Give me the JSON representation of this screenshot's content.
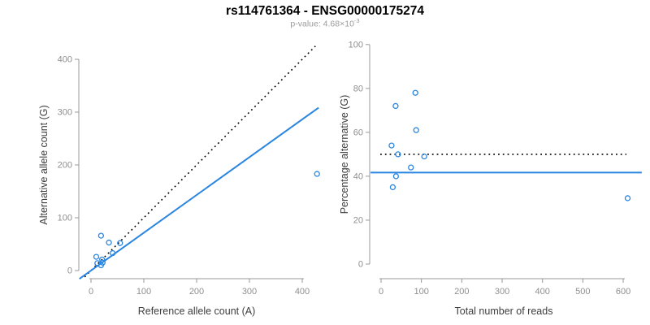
{
  "header": {
    "title": "rs114761364 - ENSG00000175274",
    "pvalue_prefix": "p-value: ",
    "pvalue_mantissa": "4.68×10",
    "pvalue_exponent": "-3"
  },
  "colors": {
    "point_blue": "#2a86e0",
    "fit_line_blue": "#2a86e0",
    "reference_line_black": "#000000",
    "axis_line": "#999999",
    "tick_label": "#8f8f8f",
    "axis_title": "#3d3d3d",
    "title": "#000000",
    "subtitle": "#9b9b9b",
    "background": "#ffffff"
  },
  "chart_data": [
    {
      "type": "scatter",
      "title": "rs114761364 - ENSG00000175274",
      "xlabel": "Reference allele count (A)",
      "ylabel": "Alternative allele count (G)",
      "xticks": [
        0,
        100,
        200,
        300,
        400
      ],
      "yticks": [
        0,
        100,
        200,
        300,
        400
      ],
      "xlim": [
        0,
        430
      ],
      "ylim": [
        0,
        430
      ],
      "grid": false,
      "points": [
        [
          10,
          26
        ],
        [
          19,
          66
        ],
        [
          34,
          53
        ],
        [
          12,
          14
        ],
        [
          21,
          21
        ],
        [
          55,
          52
        ],
        [
          41,
          33
        ],
        [
          22,
          15
        ],
        [
          19,
          10
        ],
        [
          428,
          183
        ]
      ],
      "lines": [
        {
          "name": "identity-line",
          "style": "dotted",
          "slope": 1,
          "intercept": 0,
          "xr": [
            -12,
            425
          ]
        },
        {
          "name": "fit-line",
          "style": "solid",
          "slope": 0.7156,
          "intercept": 0,
          "xr": [
            -22,
            431
          ]
        }
      ]
    },
    {
      "type": "scatter",
      "title": "rs114761364 - ENSG00000175274",
      "xlabel": "Total number of reads",
      "ylabel": "Percentage alternative (G)",
      "xticks": [
        0,
        100,
        200,
        300,
        400,
        500,
        600
      ],
      "yticks": [
        0,
        20,
        40,
        60,
        80,
        100
      ],
      "xlim": [
        0,
        620
      ],
      "ylim": [
        0,
        100
      ],
      "grid": false,
      "points": [
        [
          36,
          72
        ],
        [
          85,
          78
        ],
        [
          87,
          61
        ],
        [
          26,
          54
        ],
        [
          42,
          50
        ],
        [
          107,
          49
        ],
        [
          74,
          44
        ],
        [
          37,
          40
        ],
        [
          29,
          35
        ],
        [
          611,
          30
        ]
      ],
      "lines": [
        {
          "name": "expected-50pct-line",
          "style": "dotted",
          "slope": 0,
          "intercept": 50,
          "xr": [
            -2,
            608
          ]
        },
        {
          "name": "mean-fraction-line",
          "style": "solid",
          "slope": 0,
          "intercept": 41.7,
          "xr": [
            -26,
            646
          ]
        }
      ]
    }
  ]
}
